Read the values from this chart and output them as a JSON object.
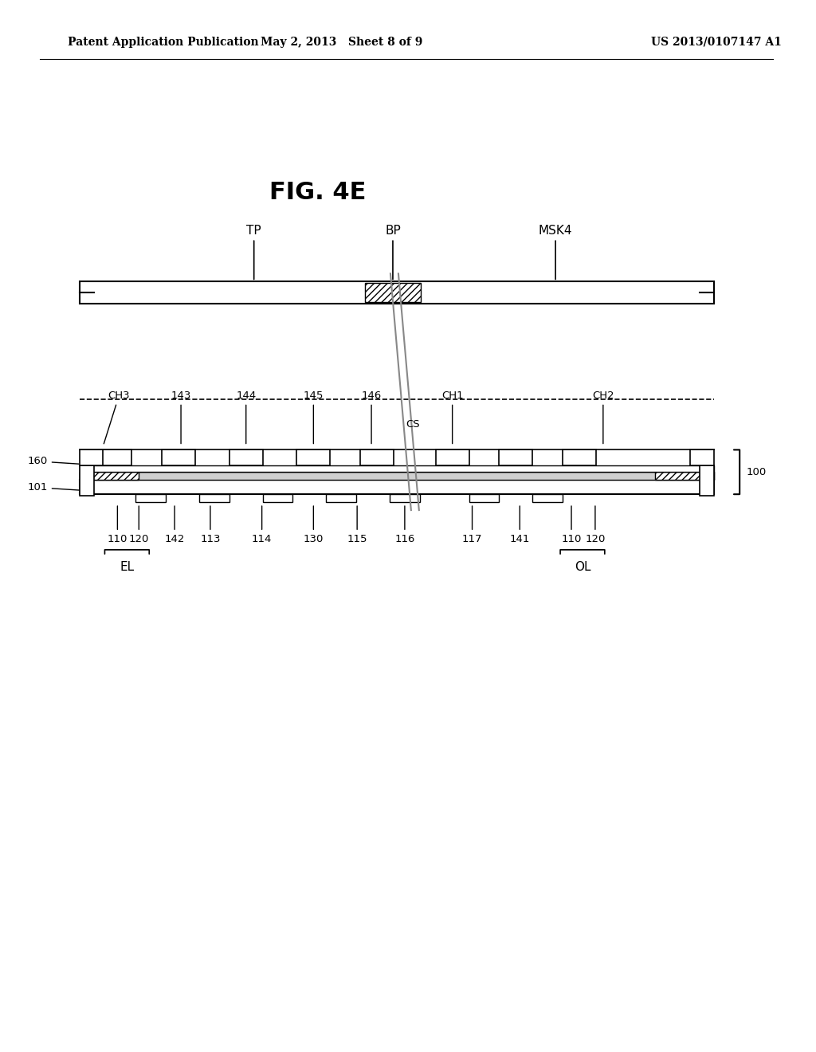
{
  "header_left": "Patent Application Publication",
  "header_mid": "May 2, 2013   Sheet 8 of 9",
  "header_right": "US 2013/0107147 A1",
  "fig_label": "FIG. 4E",
  "bg_color": "#ffffff",
  "line_color": "#000000"
}
